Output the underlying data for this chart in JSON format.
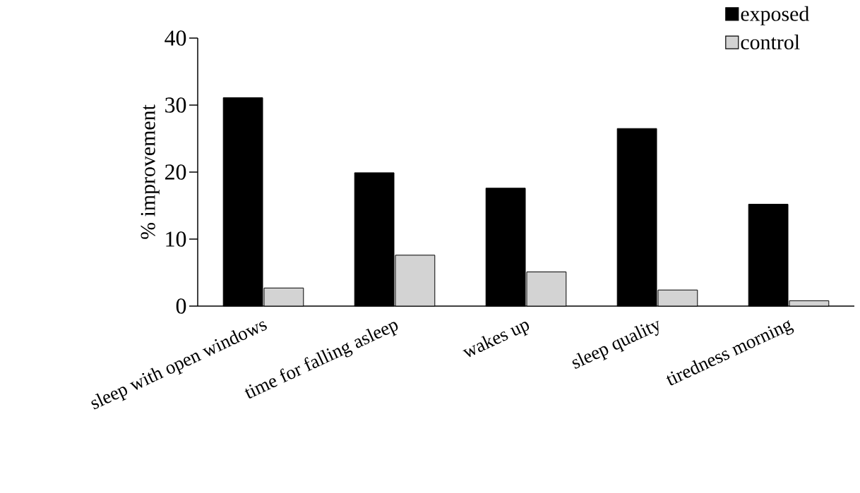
{
  "chart_data": {
    "type": "bar",
    "ylabel": "% improvement",
    "categories": [
      "sleep with open windows",
      "time for falling asleep",
      "wakes up",
      "sleep quality",
      "tiredness morning"
    ],
    "series": [
      {
        "name": "exposed",
        "color": "#000000",
        "values": [
          31.1,
          19.9,
          17.6,
          26.5,
          15.2
        ]
      },
      {
        "name": "control",
        "color": "#d3d3d3",
        "values": [
          2.7,
          7.6,
          5.1,
          2.4,
          0.8
        ]
      }
    ],
    "ylim": [
      0,
      40
    ],
    "yticks": [
      0,
      10,
      20,
      30,
      40
    ],
    "grid": false,
    "legend": "top right"
  }
}
